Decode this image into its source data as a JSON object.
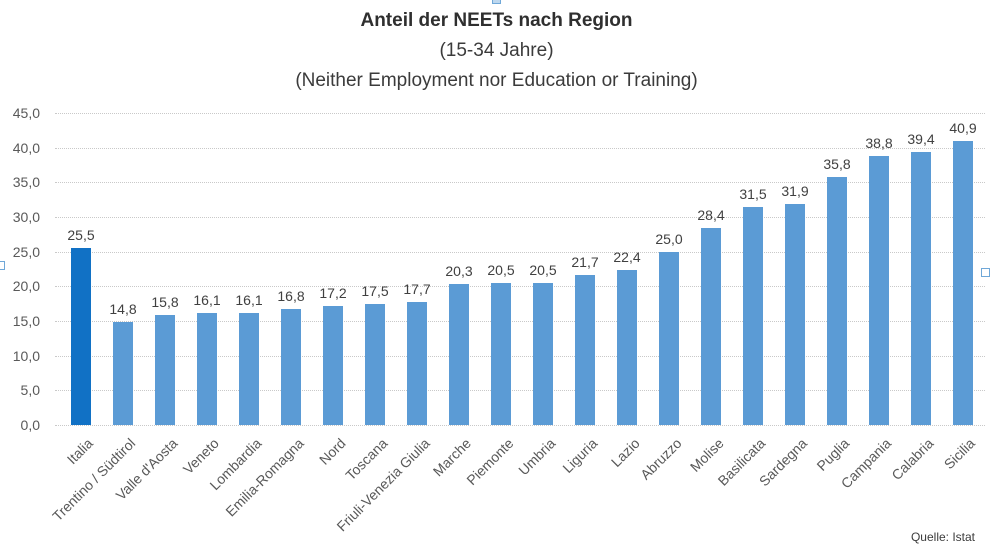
{
  "title": {
    "line1": "Anteil der NEETs nach Region",
    "line2": "(15-34 Jahre)",
    "line3": "(Neither Employment nor Education or Training)"
  },
  "source_label": "Quelle: Istat",
  "chart_data": {
    "type": "bar",
    "title": "Anteil der NEETs nach Region",
    "subtitle": "(15-34 Jahre)",
    "subtitle2": "(Neither Employment nor Education or Training)",
    "categories": [
      "Italia",
      "Trentino / Südtirol",
      "Valle d'Aosta",
      "Veneto",
      "Lombardia",
      "Emilia-Romagna",
      "Nord",
      "Toscana",
      "Friuli-Venezia Giulia",
      "Marche",
      "Piemonte",
      "Umbria",
      "Liguria",
      "Lazio",
      "Abruzzo",
      "Molise",
      "Basilicata",
      "Sardegna",
      "Puglia",
      "Campania",
      "Calabria",
      "Sicilia"
    ],
    "values": [
      25.5,
      14.8,
      15.8,
      16.1,
      16.1,
      16.8,
      17.2,
      17.5,
      17.7,
      20.3,
      20.5,
      20.5,
      21.7,
      22.4,
      25.0,
      28.4,
      31.5,
      31.9,
      35.8,
      38.8,
      39.4,
      40.9
    ],
    "value_labels": [
      "25,5",
      "14,8",
      "15,8",
      "16,1",
      "16,1",
      "16,8",
      "17,2",
      "17,5",
      "17,7",
      "20,3",
      "20,5",
      "20,5",
      "21,7",
      "22,4",
      "25,0",
      "28,4",
      "31,5",
      "31,9",
      "35,8",
      "38,8",
      "39,4",
      "40,9"
    ],
    "highlighted_category": "Italia",
    "xlabel": "",
    "ylabel": "",
    "ylim": [
      0,
      45
    ],
    "yticks": [
      0,
      5,
      10,
      15,
      20,
      25,
      30,
      35,
      40,
      45
    ],
    "ytick_labels": [
      "0,0",
      "5,0",
      "10,0",
      "15,0",
      "20,0",
      "25,0",
      "30,0",
      "35,0",
      "40,0",
      "45,0"
    ],
    "grid": true,
    "legend": false,
    "source": "Quelle: Istat",
    "colors": {
      "bar": "#5b9bd5",
      "bar_highlight": "#1171c5",
      "gridline": "#c9c9c9",
      "axis_text": "#595959",
      "value_text": "#404040",
      "title_text": "#2f2f2f"
    }
  }
}
